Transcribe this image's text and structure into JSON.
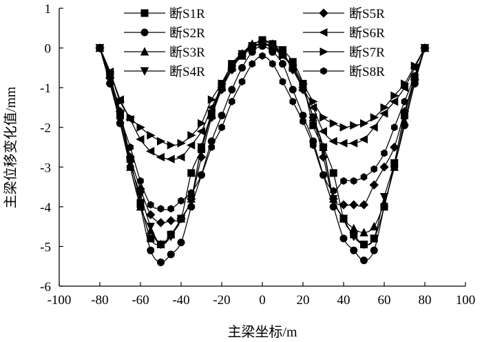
{
  "chart_data": {
    "type": "line",
    "title": "",
    "xlabel": "主梁坐标/m",
    "ylabel": "主梁位移变化值/mm",
    "xlim": [
      -100,
      100
    ],
    "ylim": [
      -6,
      1
    ],
    "xticks": [
      -100,
      -80,
      -60,
      -40,
      -20,
      0,
      20,
      40,
      60,
      80,
      100
    ],
    "yticks": [
      -6,
      -5,
      -4,
      -3,
      -2,
      -1,
      0,
      1
    ],
    "legend_position": "top",
    "grid": false,
    "series": [
      {
        "name": "断S1R",
        "marker": "square",
        "x": [
          -80,
          -75,
          -70,
          -65,
          -60,
          -55,
          -50,
          -45,
          -40,
          -35,
          -30,
          -25,
          -20,
          -15,
          -10,
          -5,
          0,
          5,
          10,
          15,
          20,
          25,
          30,
          35,
          40,
          45,
          50,
          55,
          60,
          65,
          70,
          75,
          80
        ],
        "y": [
          0,
          -0.7,
          -1.7,
          -2.8,
          -3.9,
          -4.8,
          -4.95,
          -4.7,
          -4.3,
          -3.15,
          -2.55,
          -1.65,
          -0.9,
          -0.45,
          -0.2,
          0.05,
          0.2,
          0.1,
          -0.05,
          -0.35,
          -0.9,
          -1.95,
          -2.5,
          -3.15,
          -4.3,
          -4.7,
          -4.95,
          -4.8,
          -4.0,
          -2.9,
          -1.7,
          -0.75,
          0
        ]
      },
      {
        "name": "断S2R",
        "marker": "circle",
        "x": [
          -80,
          -75,
          -70,
          -65,
          -60,
          -55,
          -50,
          -45,
          -40,
          -35,
          -30,
          -25,
          -20,
          -15,
          -10,
          -5,
          0,
          5,
          10,
          15,
          20,
          25,
          30,
          35,
          40,
          45,
          50,
          55,
          60,
          65,
          70,
          75,
          80
        ],
        "y": [
          0,
          -0.9,
          -1.9,
          -3.0,
          -4.0,
          -5.1,
          -5.4,
          -5.2,
          -4.9,
          -4.0,
          -3.2,
          -2.35,
          -1.7,
          -1.05,
          -0.5,
          -0.1,
          0.05,
          -0.1,
          -0.4,
          -1.05,
          -1.7,
          -2.35,
          -3.2,
          -4.0,
          -4.8,
          -5.1,
          -5.35,
          -5.1,
          -4.0,
          -3.0,
          -1.95,
          -0.9,
          0
        ]
      },
      {
        "name": "断S3R",
        "marker": "triangle-up",
        "x": [
          -80,
          -75,
          -70,
          -65,
          -60,
          -55,
          -50,
          -45,
          -40,
          -35,
          -30,
          -25,
          -20,
          -15,
          -10,
          -5,
          0,
          5,
          10,
          15,
          20,
          25,
          30,
          35,
          40,
          45,
          50,
          55,
          60,
          65,
          70,
          75,
          80
        ],
        "y": [
          0,
          -0.8,
          -1.8,
          -3.0,
          -4.0,
          -4.6,
          -4.95,
          -4.7,
          -4.3,
          -3.8,
          -2.5,
          -1.7,
          -0.95,
          -0.45,
          -0.15,
          0.1,
          0.15,
          0.1,
          -0.15,
          -0.5,
          -1.0,
          -1.75,
          -2.5,
          -3.8,
          -4.3,
          -4.55,
          -4.65,
          -4.5,
          -3.9,
          -3.0,
          -1.85,
          -0.8,
          0
        ]
      },
      {
        "name": "断S4R",
        "marker": "triangle-down",
        "x": [
          -80,
          -75,
          -70,
          -65,
          -60,
          -55,
          -50,
          -45,
          -40,
          -35,
          -30,
          -25,
          -20,
          -15,
          -10,
          -5,
          0,
          5,
          10,
          15,
          20,
          25,
          30,
          35,
          40,
          45,
          50,
          55,
          60,
          65,
          70,
          75,
          80
        ],
        "y": [
          0,
          -0.75,
          -1.65,
          -2.9,
          -3.7,
          -4.5,
          -4.95,
          -4.75,
          -4.3,
          -3.8,
          -2.5,
          -1.65,
          -1.0,
          -0.4,
          -0.15,
          0.05,
          0.1,
          0.05,
          -0.15,
          -0.5,
          -1.0,
          -1.75,
          -2.55,
          -3.8,
          -4.3,
          -4.75,
          -4.95,
          -4.8,
          -3.75,
          -2.9,
          -1.65,
          -0.75,
          0
        ]
      },
      {
        "name": "断S5R",
        "marker": "diamond",
        "x": [
          -80,
          -75,
          -70,
          -65,
          -60,
          -55,
          -50,
          -45,
          -40,
          -35,
          -30,
          -25,
          -20,
          -15,
          -10,
          -5,
          0,
          5,
          10,
          15,
          20,
          25,
          30,
          35,
          40,
          45,
          50,
          55,
          60,
          65,
          70,
          75,
          80
        ],
        "y": [
          0,
          -0.75,
          -1.6,
          -2.75,
          -3.55,
          -4.2,
          -4.4,
          -4.35,
          -4.3,
          -3.8,
          -2.75,
          -1.75,
          -1.05,
          -0.55,
          -0.15,
          0.05,
          0.1,
          0.05,
          -0.15,
          -0.55,
          -1.05,
          -1.75,
          -2.75,
          -3.8,
          -3.95,
          -3.95,
          -3.95,
          -3.45,
          -3.0,
          -2.5,
          -1.6,
          -0.8,
          0
        ]
      },
      {
        "name": "断S6R",
        "marker": "triangle-left",
        "x": [
          -80,
          -75,
          -70,
          -65,
          -60,
          -55,
          -50,
          -45,
          -40,
          -35,
          -30,
          -25,
          -20,
          -15,
          -10,
          -5,
          0,
          5,
          10,
          15,
          20,
          25,
          30,
          35,
          40,
          45,
          50,
          55,
          60,
          65,
          70,
          75,
          80
        ],
        "y": [
          0,
          -0.6,
          -1.3,
          -1.8,
          -2.3,
          -2.6,
          -2.75,
          -2.8,
          -2.75,
          -2.45,
          -2.1,
          -1.5,
          -1.0,
          -0.5,
          -0.2,
          0.05,
          0.1,
          0.05,
          -0.2,
          -0.5,
          -1.0,
          -1.5,
          -2.1,
          -2.35,
          -2.4,
          -2.4,
          -2.3,
          -2.0,
          -1.65,
          -1.35,
          -1.0,
          -0.5,
          0
        ]
      },
      {
        "name": "断S7R",
        "marker": "triangle-right",
        "x": [
          -80,
          -75,
          -70,
          -65,
          -60,
          -55,
          -50,
          -45,
          -40,
          -35,
          -30,
          -25,
          -20,
          -15,
          -10,
          -5,
          0,
          5,
          10,
          15,
          20,
          25,
          30,
          35,
          40,
          45,
          50,
          55,
          60,
          65,
          70,
          75,
          80
        ],
        "y": [
          0,
          -0.6,
          -1.35,
          -1.75,
          -2.0,
          -2.2,
          -2.35,
          -2.45,
          -2.4,
          -2.2,
          -1.9,
          -1.3,
          -0.9,
          -0.45,
          -0.2,
          0.0,
          0.1,
          0.0,
          -0.2,
          -0.45,
          -0.9,
          -1.35,
          -1.75,
          -1.9,
          -2.0,
          -1.95,
          -1.9,
          -1.75,
          -1.5,
          -1.2,
          -0.9,
          -0.45,
          0
        ]
      },
      {
        "name": "断S8R",
        "marker": "hexagon",
        "x": [
          -80,
          -75,
          -70,
          -65,
          -60,
          -55,
          -50,
          -45,
          -40,
          -35,
          -30,
          -25,
          -20,
          -15,
          -10,
          -5,
          0,
          5,
          10,
          15,
          20,
          25,
          30,
          35,
          40,
          45,
          50,
          55,
          60,
          65,
          70,
          75,
          80
        ],
        "y": [
          0,
          -0.9,
          -1.75,
          -2.5,
          -3.35,
          -3.95,
          -4.05,
          -4.05,
          -3.85,
          -3.65,
          -3.2,
          -2.5,
          -2.0,
          -1.35,
          -0.85,
          -0.4,
          -0.2,
          -0.4,
          -0.85,
          -1.35,
          -1.85,
          -2.45,
          -3.2,
          -3.6,
          -3.35,
          -3.35,
          -3.25,
          -3.05,
          -2.65,
          -2.0,
          -1.35,
          -0.7,
          0
        ]
      }
    ]
  }
}
